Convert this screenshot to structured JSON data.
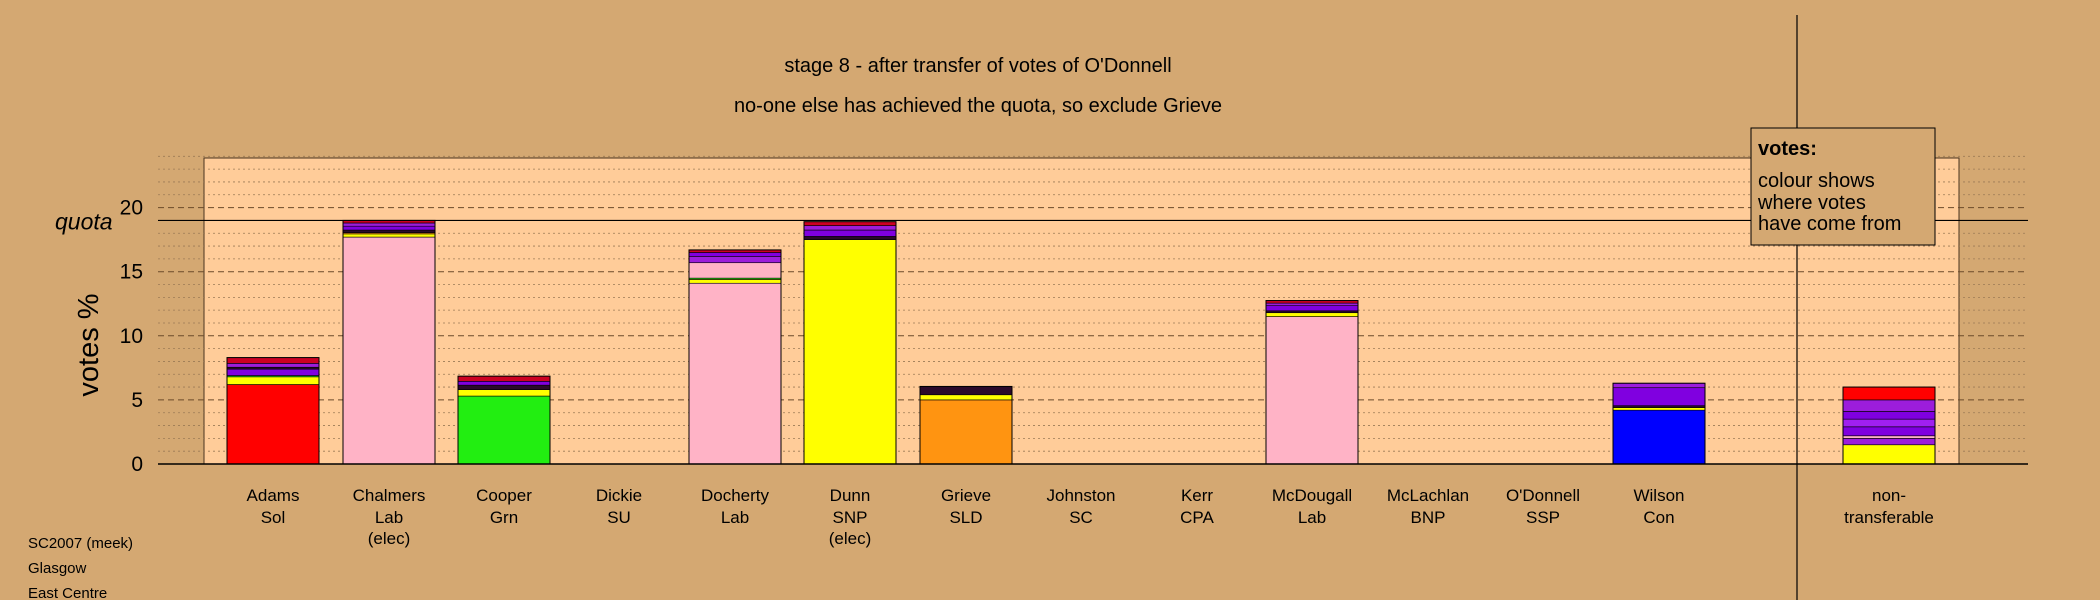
{
  "titles": {
    "line1": "stage 8 - after transfer of votes of O'Donnell",
    "line2": "no-one else has achieved the quota, so exclude Grieve"
  },
  "axis": {
    "ylabel": "votes %",
    "quota_label": "quota"
  },
  "legend": {
    "title": "votes:",
    "lines": [
      "colour shows",
      "where votes",
      "have come from"
    ]
  },
  "footer": {
    "lines": [
      "SC2007 (meek)",
      "Glasgow",
      "East Centre"
    ]
  },
  "colors": {
    "background": "#d4a872",
    "plot_area": "#ffcc99",
    "Sol": "#ff0000",
    "Lab": "#ffb3c6",
    "Grn": "#22ee11",
    "SNP": "#ffff00",
    "SLD": "#ff9411",
    "Con": "#0000ff",
    "SSP": "#9c1ddb",
    "SC": "#8000e0",
    "CPA": "#a020f0",
    "BNP": "#2a0a2a",
    "SU": "#cc0022"
  },
  "chart_data": {
    "type": "bar",
    "stacked": true,
    "title": "stage 8 - after transfer of votes of O'Donnell",
    "subtitle": "no-one else has achieved the quota, so exclude Grieve",
    "ylabel": "votes %",
    "ylim": [
      0,
      24
    ],
    "yticks": [
      0,
      5,
      10,
      15,
      20
    ],
    "quota": 19.0,
    "grid": "dashed major, dotted minor",
    "legend_position": "top-right",
    "categories": [
      {
        "name": "Adams",
        "party": "Sol",
        "note": ""
      },
      {
        "name": "Chalmers",
        "party": "Lab",
        "note": "(elec)"
      },
      {
        "name": "Cooper",
        "party": "Grn",
        "note": ""
      },
      {
        "name": "Dickie",
        "party": "SU",
        "note": ""
      },
      {
        "name": "Docherty",
        "party": "Lab",
        "note": ""
      },
      {
        "name": "Dunn",
        "party": "SNP",
        "note": "(elec)"
      },
      {
        "name": "Grieve",
        "party": "SLD",
        "note": ""
      },
      {
        "name": "Johnston",
        "party": "SC",
        "note": ""
      },
      {
        "name": "Kerr",
        "party": "CPA",
        "note": ""
      },
      {
        "name": "McDougall",
        "party": "Lab",
        "note": ""
      },
      {
        "name": "McLachlan",
        "party": "BNP",
        "note": ""
      },
      {
        "name": "O'Donnell",
        "party": "SSP",
        "note": ""
      },
      {
        "name": "Wilson",
        "party": "Con",
        "note": ""
      },
      {
        "name": "non-",
        "party": "transferable",
        "note": ""
      }
    ],
    "bars": [
      {
        "segments": [
          {
            "src": "Sol",
            "value": 6.2
          },
          {
            "src": "SNP",
            "value": 0.6
          },
          {
            "src": "Grn",
            "value": 0.1
          },
          {
            "src": "SC",
            "value": 0.5
          },
          {
            "src": "BNP",
            "value": 0.15
          },
          {
            "src": "SSP",
            "value": 0.3
          },
          {
            "src": "SU",
            "value": 0.45
          }
        ]
      },
      {
        "segments": [
          {
            "src": "Lab",
            "value": 17.7
          },
          {
            "src": "SNP",
            "value": 0.25
          },
          {
            "src": "SLD",
            "value": 0.1
          },
          {
            "src": "BNP",
            "value": 0.2
          },
          {
            "src": "SC",
            "value": 0.3
          },
          {
            "src": "SSP",
            "value": 0.25
          },
          {
            "src": "SU",
            "value": 0.2
          }
        ]
      },
      {
        "segments": [
          {
            "src": "Grn",
            "value": 5.3
          },
          {
            "src": "SNP",
            "value": 0.5
          },
          {
            "src": "BNP",
            "value": 0.35
          },
          {
            "src": "SC",
            "value": 0.3
          },
          {
            "src": "SU",
            "value": 0.4
          }
        ]
      },
      {
        "segments": []
      },
      {
        "segments": [
          {
            "src": "Lab",
            "value": 14.1
          },
          {
            "src": "SNP",
            "value": 0.3
          },
          {
            "src": "Grn",
            "value": 0.1
          },
          {
            "src": "Lab",
            "value": 1.2
          },
          {
            "src": "SSP",
            "value": 0.5
          },
          {
            "src": "SC",
            "value": 0.3
          },
          {
            "src": "SU",
            "value": 0.2
          }
        ]
      },
      {
        "segments": [
          {
            "src": "SNP",
            "value": 17.5
          },
          {
            "src": "BNP",
            "value": 0.25
          },
          {
            "src": "SC",
            "value": 0.5
          },
          {
            "src": "SSP",
            "value": 0.35
          },
          {
            "src": "SU",
            "value": 0.3
          }
        ]
      },
      {
        "segments": [
          {
            "src": "SLD",
            "value": 5.0
          },
          {
            "src": "SNP",
            "value": 0.4
          },
          {
            "src": "BNP",
            "value": 0.65
          }
        ]
      },
      {
        "segments": []
      },
      {
        "segments": []
      },
      {
        "segments": [
          {
            "src": "Lab",
            "value": 11.5
          },
          {
            "src": "SNP",
            "value": 0.3
          },
          {
            "src": "BNP",
            "value": 0.15
          },
          {
            "src": "SC",
            "value": 0.4
          },
          {
            "src": "SSP",
            "value": 0.2
          },
          {
            "src": "SU",
            "value": 0.2
          }
        ]
      },
      {
        "segments": []
      },
      {
        "segments": []
      },
      {
        "segments": [
          {
            "src": "Con",
            "value": 4.2
          },
          {
            "src": "SNP",
            "value": 0.2
          },
          {
            "src": "BNP",
            "value": 0.15
          },
          {
            "src": "SC",
            "value": 1.4
          },
          {
            "src": "SSP",
            "value": 0.35
          }
        ]
      },
      {
        "segments": [
          {
            "src": "SNP",
            "value": 1.5
          },
          {
            "src": "SSP",
            "value": 0.5
          },
          {
            "src": "Lab",
            "value": 0.2
          },
          {
            "src": "SC",
            "value": 0.7
          },
          {
            "src": "CPA",
            "value": 0.6
          },
          {
            "src": "SC",
            "value": 0.6
          },
          {
            "src": "SSP",
            "value": 0.9
          },
          {
            "src": "Sol",
            "value": 1.0
          }
        ]
      }
    ]
  }
}
